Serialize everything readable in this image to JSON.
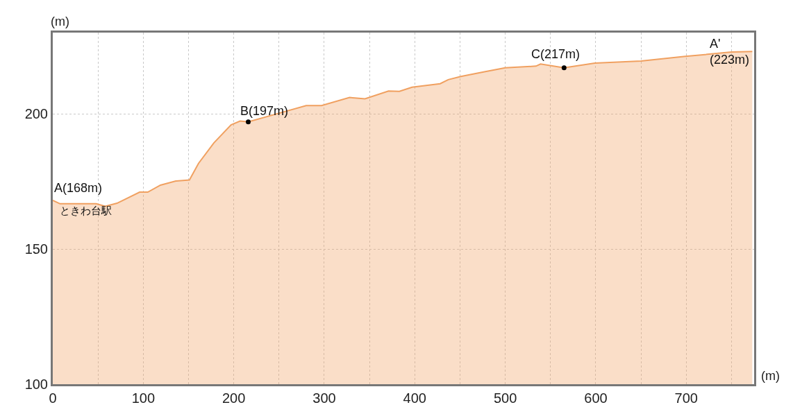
{
  "chart_data": {
    "type": "area",
    "xlabel": "(m)",
    "ylabel": "(m)",
    "series": [
      {
        "color": "#f0a060",
        "x": [
          0,
          8,
          48,
          58,
          71,
          96,
          105,
          119,
          136,
          151,
          161,
          178,
          197,
          207,
          216,
          249,
          280,
          297,
          328,
          345,
          371,
          383,
          397,
          428,
          437,
          451,
          477,
          500,
          534,
          539,
          565,
          599,
          650,
          699,
          750,
          773
        ],
        "values": [
          168,
          166.7,
          166.7,
          165.8,
          166.9,
          171,
          171,
          173.6,
          175.1,
          175.5,
          181.6,
          189.2,
          195.9,
          197.3,
          197,
          200.1,
          203,
          203,
          206,
          205.5,
          208.4,
          208.3,
          209.8,
          211.1,
          212.6,
          213.8,
          215.5,
          217,
          217.6,
          218.4,
          217,
          218.7,
          219.5,
          221.2,
          222.8,
          223
        ]
      },
      {
        "type": "scatter",
        "color": "#000000",
        "x": [
          216,
          565
        ],
        "values": [
          197,
          217
        ]
      }
    ],
    "annotations": [
      {
        "text": "A(168m)",
        "x": 0,
        "y": 168
      },
      {
        "text": "ときわ台駅",
        "x": 0,
        "y": 168
      },
      {
        "text": "B(197m)",
        "x": 216,
        "y": 197
      },
      {
        "text": "C(217m)",
        "x": 565,
        "y": 217
      },
      {
        "text": "A'\n(223m)",
        "x": 773,
        "y": 223
      }
    ],
    "xlim": [
      0,
      775
    ],
    "ylim": [
      100,
      230
    ],
    "xticks": [
      0,
      {
        "value": 50,
        "label": null
      },
      100,
      {
        "value": 150,
        "label": null
      },
      200,
      {
        "value": 250,
        "label": null
      },
      300,
      {
        "value": 350,
        "label": null
      },
      400,
      {
        "value": 450,
        "label": null
      },
      500,
      {
        "value": 550,
        "label": null
      },
      600,
      {
        "value": 650,
        "label": null
      },
      700,
      {
        "value": 750,
        "label": null
      }
    ],
    "yticks": [
      100,
      150,
      200
    ],
    "grid": true
  }
}
